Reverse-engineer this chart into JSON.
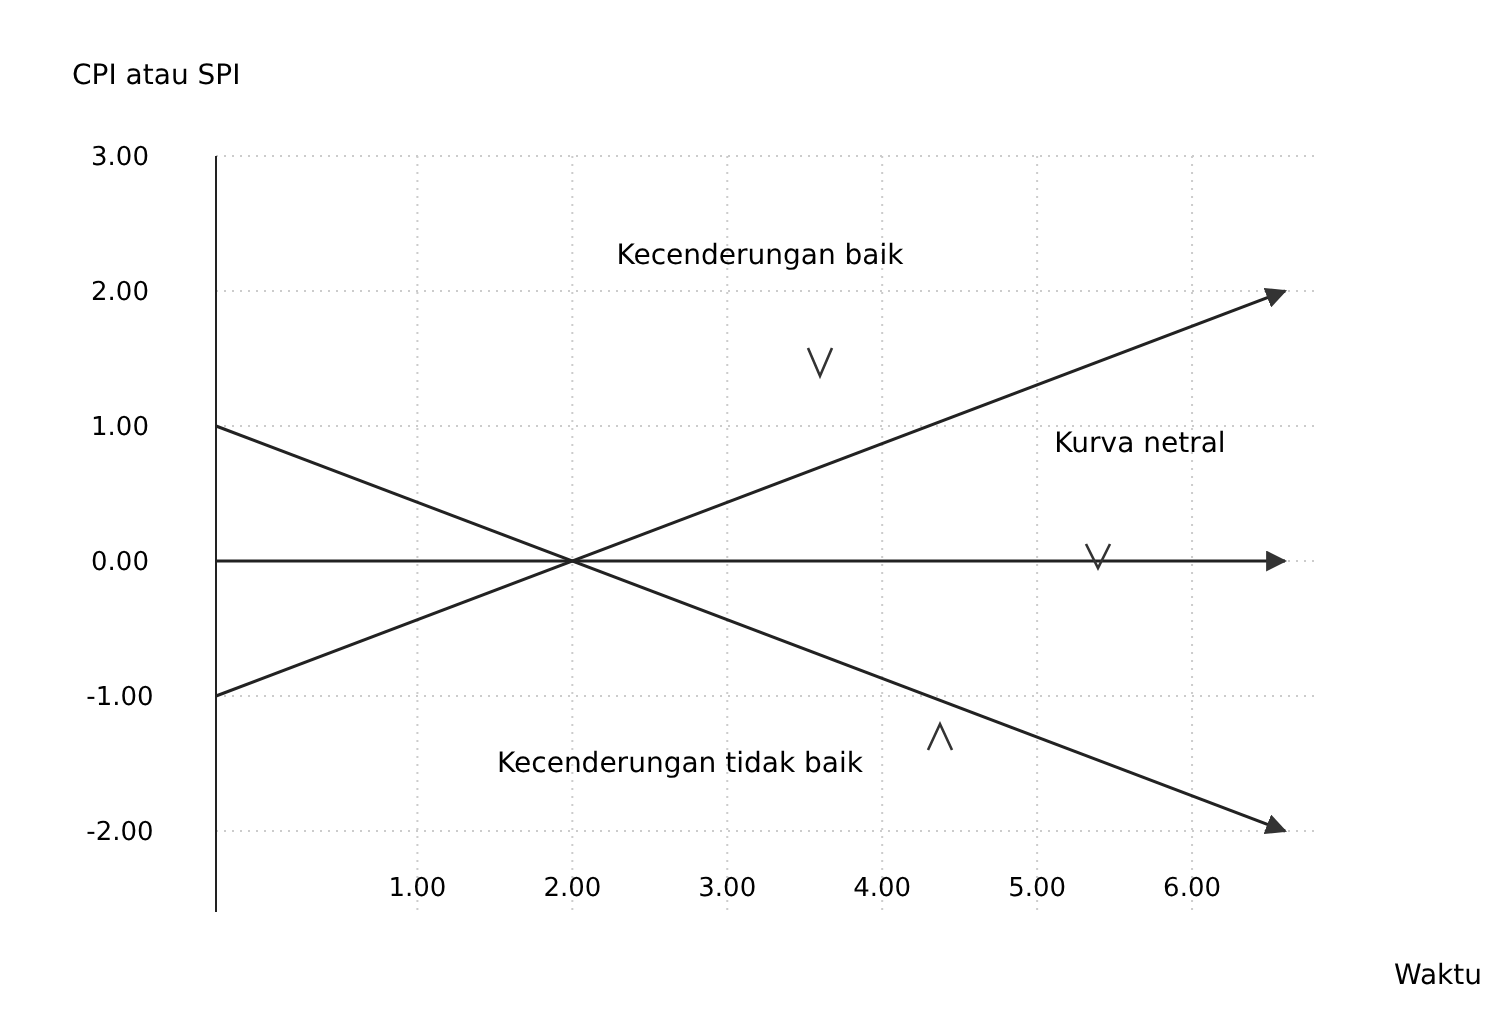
{
  "chart_data": {
    "type": "line",
    "ylabel": "CPI atau SPI",
    "xlabel": "Waktu",
    "xlim": [
      -0.3,
      6.8
    ],
    "ylim": [
      -2.6,
      3
    ],
    "xticks": [
      {
        "value": 1,
        "label": "1.00"
      },
      {
        "value": 2,
        "label": "2.00"
      },
      {
        "value": 3,
        "label": "3.00"
      },
      {
        "value": 4,
        "label": "4.00"
      },
      {
        "value": 5,
        "label": "5.00"
      },
      {
        "value": 6,
        "label": "6.00"
      }
    ],
    "yticks": [
      {
        "value": -2,
        "label": "-2.00"
      },
      {
        "value": -1,
        "label": "-1.00"
      },
      {
        "value": 0,
        "label": "0.00"
      },
      {
        "value": 1,
        "label": "1.00"
      },
      {
        "value": 2,
        "label": "2.00"
      },
      {
        "value": 3,
        "label": "3.00"
      }
    ],
    "x": [
      -0.3,
      6.6
    ],
    "grid": true,
    "marker": "none",
    "line_style": "solid",
    "series": [
      {
        "color": "#222222",
        "values": [
          1,
          -2
        ]
      },
      {
        "color": "#222222",
        "values": [
          -1,
          2
        ]
      },
      {
        "color": "#222222",
        "values": [
          0,
          0
        ]
      }
    ],
    "annotations": [
      "Kecenderungan baik",
      "Kurva netral",
      "Kecenderungan tidak baik"
    ]
  }
}
